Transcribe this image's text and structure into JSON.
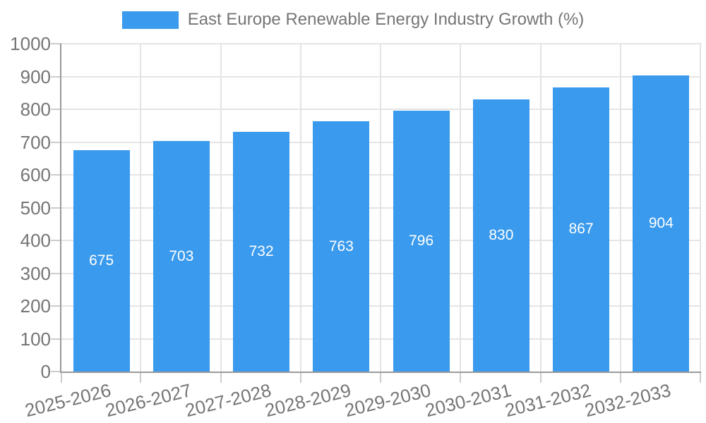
{
  "chart_data": {
    "type": "bar",
    "title": "East Europe Renewable Energy Industry Growth (%)",
    "categories": [
      "2025-2026",
      "2026-2027",
      "2027-2028",
      "2028-2029",
      "2029-2030",
      "2030-2031",
      "2031-2032",
      "2032-2033"
    ],
    "values": [
      675,
      703,
      732,
      763,
      796,
      830,
      867,
      904
    ],
    "ylim": [
      0,
      1000
    ],
    "ytick_step": 100,
    "ytick_labels": [
      "0",
      "100",
      "200",
      "300",
      "400",
      "500",
      "600",
      "700",
      "800",
      "900",
      "1000"
    ],
    "grid": true,
    "legend_position": "top",
    "bar_color": "#3A9AED",
    "bar_label_color": "#FFFFFF",
    "axis_text_color": "#757575",
    "grid_color": "#E4E4E4",
    "axis_line_color": "#9A9A9A",
    "tick_color": "#CCCCCC"
  }
}
